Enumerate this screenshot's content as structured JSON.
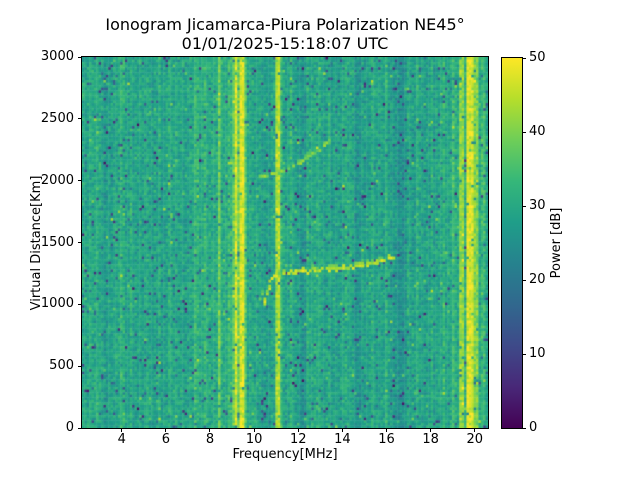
{
  "title": {
    "line1": "Ionogram Jicamarca-Piura Polarization NE45°",
    "line2": "01/01/2025-15:18:07 UTC"
  },
  "colors": {
    "background": "#ffffff",
    "text": "#000000",
    "axes": "#000000"
  },
  "chart_data": {
    "type": "heatmap",
    "title": "Ionogram Jicamarca-Piura Polarization NE45°",
    "subtitle": "01/01/2025-15:18:07 UTC",
    "xlabel": "Frequency[MHz]",
    "ylabel": "Virtual Distance[Km]",
    "xlim": [
      2.2,
      20.6
    ],
    "ylim": [
      0,
      3000
    ],
    "xticks": [
      4,
      6,
      8,
      10,
      12,
      14,
      16,
      18,
      20
    ],
    "yticks": [
      0,
      500,
      1000,
      1500,
      2000,
      2500,
      3000
    ],
    "grid": false,
    "colorbar": {
      "label": "Power [dB]",
      "min": 0,
      "max": 50,
      "ticks": [
        0,
        10,
        20,
        30,
        40,
        50
      ],
      "colormap": "viridis"
    },
    "colormap_stops": [
      "#440154",
      "#482878",
      "#3e4a89",
      "#31688e",
      "#26828e",
      "#1f9e89",
      "#35b779",
      "#6ece58",
      "#b5de2b",
      "#fde725"
    ],
    "noise": {
      "base_db": 29,
      "sigma_db": 5.5,
      "dark_speckle_rate": 0.04,
      "bright_speckle_rate": 0.012,
      "seed": 20250101,
      "nx": 170,
      "ny": 145
    },
    "rfi_stripes": [
      {
        "f0": 2.5,
        "f1": 3.1,
        "db": 1.5
      },
      {
        "f0": 3.2,
        "f1": 3.7,
        "db": -1.5
      },
      {
        "f0": 3.78,
        "f1": 3.86,
        "db": 3
      },
      {
        "f0": 3.95,
        "f1": 4.1,
        "db": 2
      },
      {
        "f0": 4.35,
        "f1": 4.5,
        "db": 3.5
      },
      {
        "f0": 4.8,
        "f1": 4.9,
        "db": 2
      },
      {
        "f0": 5.3,
        "f1": 5.45,
        "db": -1.5
      },
      {
        "f0": 5.65,
        "f1": 5.8,
        "db": 3
      },
      {
        "f0": 6.1,
        "f1": 6.2,
        "db": 2
      },
      {
        "f0": 6.7,
        "f1": 6.8,
        "db": 3.5
      },
      {
        "f0": 7.3,
        "f1": 7.45,
        "db": 3
      },
      {
        "f0": 7.7,
        "f1": 7.8,
        "db": 2
      },
      {
        "f0": 8.38,
        "f1": 8.46,
        "db": 8
      },
      {
        "f0": 8.8,
        "f1": 9.0,
        "db": 3
      },
      {
        "f0": 9.0,
        "f1": 9.12,
        "db": 9
      },
      {
        "f0": 9.12,
        "f1": 9.28,
        "db": 18
      },
      {
        "f0": 9.28,
        "f1": 9.34,
        "db": 10
      },
      {
        "f0": 9.34,
        "f1": 9.52,
        "db": 18
      },
      {
        "f0": 9.52,
        "f1": 9.62,
        "db": 7
      },
      {
        "f0": 10.05,
        "f1": 10.15,
        "db": 3
      },
      {
        "f0": 10.35,
        "f1": 10.7,
        "db": -2.5
      },
      {
        "f0": 10.95,
        "f1": 11.08,
        "db": 13
      },
      {
        "f0": 11.08,
        "f1": 11.22,
        "db": 16
      },
      {
        "f0": 11.22,
        "f1": 11.32,
        "db": 5
      },
      {
        "f0": 11.65,
        "f1": 11.75,
        "db": 2.5
      },
      {
        "f0": 12.1,
        "f1": 12.35,
        "db": -2
      },
      {
        "f0": 12.42,
        "f1": 12.5,
        "db": 2.5
      },
      {
        "f0": 12.9,
        "f1": 13.0,
        "db": 2
      },
      {
        "f0": 13.35,
        "f1": 13.5,
        "db": 3.5
      },
      {
        "f0": 14.1,
        "f1": 14.2,
        "db": 2
      },
      {
        "f0": 14.5,
        "f1": 14.85,
        "db": -3.5
      },
      {
        "f0": 15.35,
        "f1": 15.45,
        "db": 2.5
      },
      {
        "f0": 15.95,
        "f1": 16.05,
        "db": 3
      },
      {
        "f0": 16.5,
        "f1": 16.8,
        "db": -2
      },
      {
        "f0": 16.95,
        "f1": 17.05,
        "db": 2.5
      },
      {
        "f0": 17.35,
        "f1": 17.5,
        "db": 3
      },
      {
        "f0": 18.05,
        "f1": 18.15,
        "db": 2.5
      },
      {
        "f0": 18.55,
        "f1": 18.68,
        "db": 3
      },
      {
        "f0": 19.0,
        "f1": 19.1,
        "db": 4
      },
      {
        "f0": 19.33,
        "f1": 19.52,
        "db": 11
      },
      {
        "f0": 19.6,
        "f1": 19.78,
        "db": 18
      },
      {
        "f0": 19.78,
        "f1": 19.95,
        "db": 17
      },
      {
        "f0": 19.95,
        "f1": 20.12,
        "db": 11
      },
      {
        "f0": 20.25,
        "f1": 20.5,
        "db": 5
      }
    ],
    "traces": [
      {
        "name": "f-trace-hook-faint",
        "power_db": 36,
        "dash": 0.45,
        "points": [
          [
            10.28,
            1040
          ],
          [
            10.42,
            1110
          ],
          [
            10.56,
            1160
          ]
        ]
      },
      {
        "name": "f-region-first-hop",
        "power_db": 45,
        "dash": 0.85,
        "points": [
          [
            10.45,
            990
          ],
          [
            10.58,
            1090
          ],
          [
            10.72,
            1180
          ],
          [
            10.9,
            1228
          ],
          [
            11.3,
            1248
          ],
          [
            12.0,
            1263
          ],
          [
            12.8,
            1278
          ],
          [
            13.6,
            1290
          ],
          [
            14.4,
            1302
          ],
          [
            15.1,
            1322
          ],
          [
            15.6,
            1342
          ],
          [
            16.05,
            1362
          ],
          [
            16.38,
            1380
          ]
        ]
      },
      {
        "name": "second-reflection",
        "power_db": 40,
        "dash": 0.6,
        "points": [
          [
            10.15,
            2025
          ],
          [
            10.6,
            2045
          ],
          [
            11.0,
            2062
          ],
          [
            11.35,
            2082
          ],
          [
            11.75,
            2115
          ],
          [
            12.15,
            2155
          ],
          [
            12.55,
            2205
          ],
          [
            12.95,
            2255
          ],
          [
            13.3,
            2295
          ],
          [
            13.52,
            2322
          ]
        ]
      }
    ]
  }
}
